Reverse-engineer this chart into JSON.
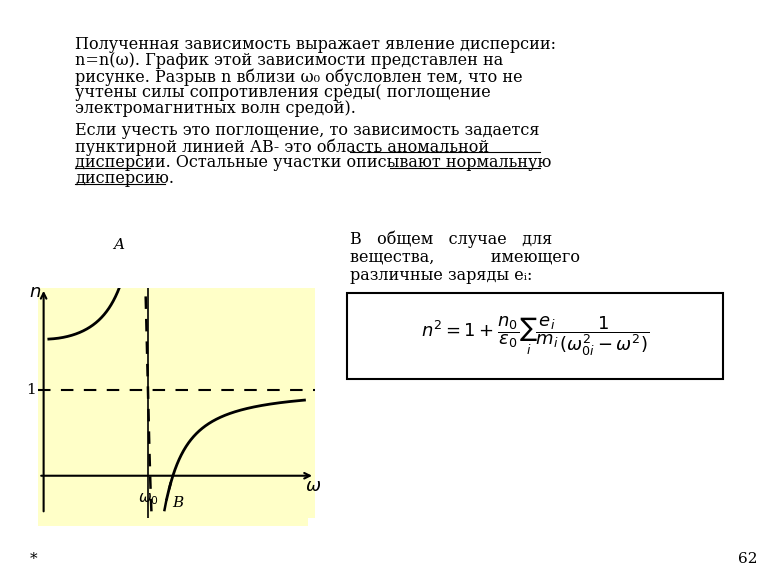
{
  "bg_color": "#ffffff",
  "slide_bg": "#ffffff",
  "graph_bg": "#ffffc8",
  "text_color": "#000000",
  "title_text": [
    "Полученная зависимость выражает явление дисперсии:",
    "n=n(ω). График этой зависимости представлен на",
    "рисунке. Разрыв n вблизи ω₀ обусловлен тем, что не",
    "учтены силы сопротивления среды( поглощение",
    "электромагнитных волн средой)."
  ],
  "text2": [
    "Если учесть это поглощение, то зависимость задается",
    "пунктирной линией АВ- это область аномальной",
    "дисперсии. Остальные участки описывают нормальную",
    "дисперсию."
  ],
  "right_text": [
    "В   общем   случае   для",
    "вещества,           имеющего",
    "различные заряды еᵢ:"
  ],
  "underline_words": [
    "область аномальной",
    "дисперсии.",
    "нормальную",
    "дисперсию."
  ],
  "page_number": "62",
  "asterisk": "*"
}
